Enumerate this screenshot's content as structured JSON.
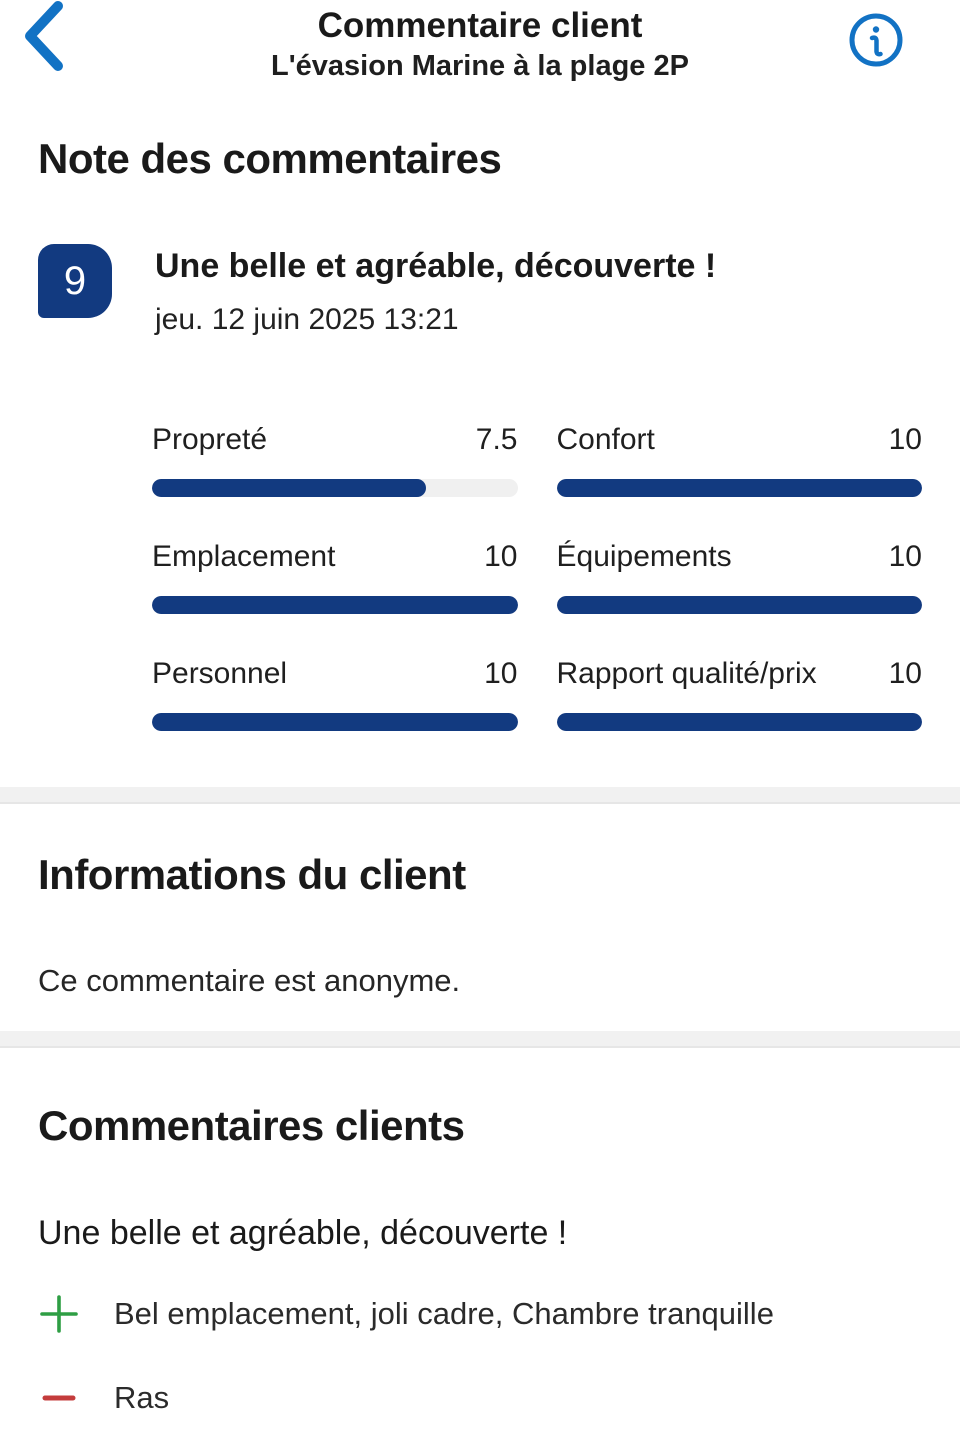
{
  "header": {
    "title": "Commentaire client",
    "subtitle": "L'évasion Marine à la plage 2P"
  },
  "colors": {
    "accent_blue": "#1272C4",
    "navy": "#123A80",
    "bar_track": "#F0F0F0",
    "pros_green": "#2E9E44",
    "cons_red": "#C43C3C",
    "divider_gray": "#F1F1F1"
  },
  "icons": {
    "back": "chevron-left-icon",
    "info": "info-icon",
    "pros": "plus-icon",
    "cons": "minus-icon"
  },
  "note_section": {
    "section_title": "Note des commentaires",
    "score": "9",
    "review_title": "Une belle et agréable, découverte !",
    "date": "jeu. 12 juin 2025 13:21"
  },
  "ratings": [
    {
      "label": "Propreté",
      "value": "7.5",
      "percent": 75
    },
    {
      "label": "Confort",
      "value": "10",
      "percent": 100
    },
    {
      "label": "Emplacement",
      "value": "10",
      "percent": 100
    },
    {
      "label": "Équipements",
      "value": "10",
      "percent": 100
    },
    {
      "label": "Personnel",
      "value": "10",
      "percent": 100
    },
    {
      "label": "Rapport qualité/prix",
      "value": "10",
      "percent": 100
    }
  ],
  "client_info": {
    "section_title": "Informations du client",
    "anonymous_text": "Ce commentaire est anonyme."
  },
  "comments_section": {
    "section_title": "Commentaires clients",
    "review_title": "Une belle et agréable, découverte !",
    "pros_text": "Bel emplacement, joli cadre, Chambre tranquille",
    "cons_text": "Ras"
  }
}
